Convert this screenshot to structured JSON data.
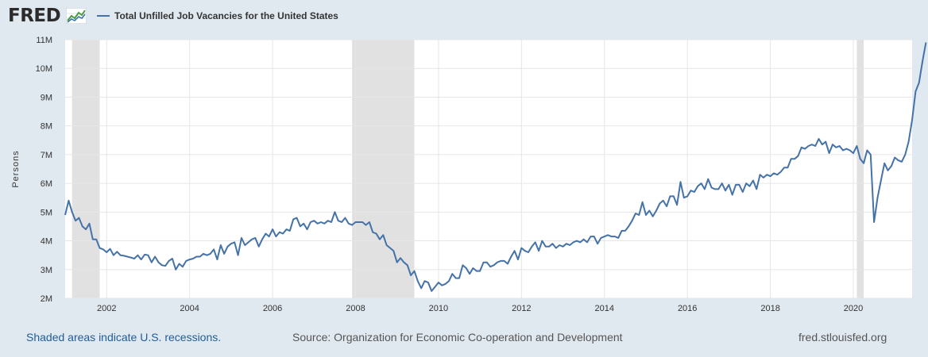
{
  "logo_text": "FRED",
  "legend_label": "Total Unfilled Job Vacancies for the United States",
  "footer": {
    "recession_note": "Shaded areas indicate U.S. recessions.",
    "source": "Source: Organization for Economic Co-operation and Development",
    "site": "fred.stlouisfed.org"
  },
  "colors": {
    "line": "#4572a7",
    "recession": "#e1e1e1",
    "grid": "#e6e6e6",
    "background": "#e1e9f0"
  },
  "chart_data": {
    "type": "line",
    "title": "Total Unfilled Job Vacancies for the United States",
    "ylabel": "Persons",
    "xlabel": "",
    "xlim": [
      "2001-01",
      "2021-06"
    ],
    "ylim": [
      2000000,
      11000000
    ],
    "grid": true,
    "legend_position": "top-left",
    "x_ticks": [
      "2002",
      "2004",
      "2006",
      "2008",
      "2010",
      "2012",
      "2014",
      "2016",
      "2018",
      "2020"
    ],
    "y_ticks": [
      "2M",
      "3M",
      "4M",
      "5M",
      "6M",
      "7M",
      "8M",
      "9M",
      "10M",
      "11M"
    ],
    "y_tick_values": [
      2000000,
      3000000,
      4000000,
      5000000,
      6000000,
      7000000,
      8000000,
      9000000,
      10000000,
      11000000
    ],
    "recessions": [
      {
        "start": "2001-03",
        "end": "2001-11"
      },
      {
        "start": "2007-12",
        "end": "2009-06"
      },
      {
        "start": "2020-02",
        "end": "2020-04"
      }
    ],
    "series": [
      {
        "name": "Total Unfilled Job Vacancies for the United States",
        "frequency": "monthly",
        "start": "2001-01",
        "values": [
          4900000,
          5400000,
          5000000,
          4700000,
          4800000,
          4500000,
          4400000,
          4600000,
          4050000,
          4050000,
          3750000,
          3700000,
          3600000,
          3720000,
          3500000,
          3620000,
          3500000,
          3480000,
          3450000,
          3420000,
          3380000,
          3500000,
          3350000,
          3520000,
          3500000,
          3250000,
          3450000,
          3250000,
          3150000,
          3130000,
          3300000,
          3380000,
          3000000,
          3200000,
          3100000,
          3300000,
          3350000,
          3380000,
          3450000,
          3450000,
          3550000,
          3500000,
          3550000,
          3700000,
          3350000,
          3850000,
          3550000,
          3800000,
          3900000,
          3950000,
          3500000,
          4100000,
          3850000,
          3950000,
          4050000,
          4100000,
          3800000,
          4050000,
          4250000,
          4150000,
          4400000,
          4150000,
          4300000,
          4250000,
          4400000,
          4350000,
          4750000,
          4800000,
          4500000,
          4600000,
          4400000,
          4650000,
          4700000,
          4600000,
          4650000,
          4600000,
          4700000,
          4650000,
          5000000,
          4700000,
          4650000,
          4800000,
          4600000,
          4550000,
          4650000,
          4650000,
          4650000,
          4550000,
          4650000,
          4300000,
          4250000,
          4050000,
          4200000,
          3850000,
          3750000,
          3650000,
          3250000,
          3400000,
          3250000,
          3150000,
          2800000,
          2950000,
          2600000,
          2350000,
          2600000,
          2550000,
          2250000,
          2400000,
          2550000,
          2450000,
          2500000,
          2600000,
          2850000,
          2700000,
          2700000,
          3150000,
          3050000,
          2850000,
          3050000,
          2950000,
          2950000,
          3250000,
          3250000,
          3100000,
          3150000,
          3250000,
          3300000,
          3300000,
          3200000,
          3450000,
          3650000,
          3350000,
          3750000,
          3650000,
          3600000,
          3800000,
          3950000,
          3650000,
          4000000,
          3800000,
          3800000,
          3900000,
          3750000,
          3850000,
          3800000,
          3900000,
          3850000,
          3950000,
          4000000,
          3950000,
          4050000,
          3950000,
          4150000,
          4150000,
          3900000,
          4100000,
          4150000,
          4200000,
          4150000,
          4150000,
          4100000,
          4350000,
          4350000,
          4500000,
          4700000,
          4950000,
          4900000,
          5350000,
          4900000,
          5050000,
          4850000,
          5050000,
          5300000,
          5400000,
          5200000,
          5550000,
          5550000,
          5250000,
          6050000,
          5500000,
          5550000,
          5750000,
          5700000,
          5900000,
          6000000,
          5800000,
          6150000,
          5850000,
          5800000,
          5800000,
          6000000,
          5750000,
          5950000,
          5600000,
          5950000,
          5950000,
          5700000,
          6000000,
          5900000,
          6100000,
          5800000,
          6300000,
          6200000,
          6300000,
          6250000,
          6350000,
          6300000,
          6400000,
          6550000,
          6550000,
          6850000,
          6850000,
          6950000,
          7250000,
          7200000,
          7300000,
          7350000,
          7300000,
          7550000,
          7350000,
          7450000,
          7050000,
          7350000,
          7250000,
          7300000,
          7150000,
          7200000,
          7150000,
          7050000,
          7300000,
          6850000,
          6700000,
          7150000,
          7000000,
          4650000,
          5500000,
          6100000,
          6700000,
          6450000,
          6600000,
          6900000,
          6800000,
          6750000,
          7000000,
          7450000,
          8200000,
          9200000,
          9500000,
          10250000,
          10900000
        ]
      }
    ]
  }
}
